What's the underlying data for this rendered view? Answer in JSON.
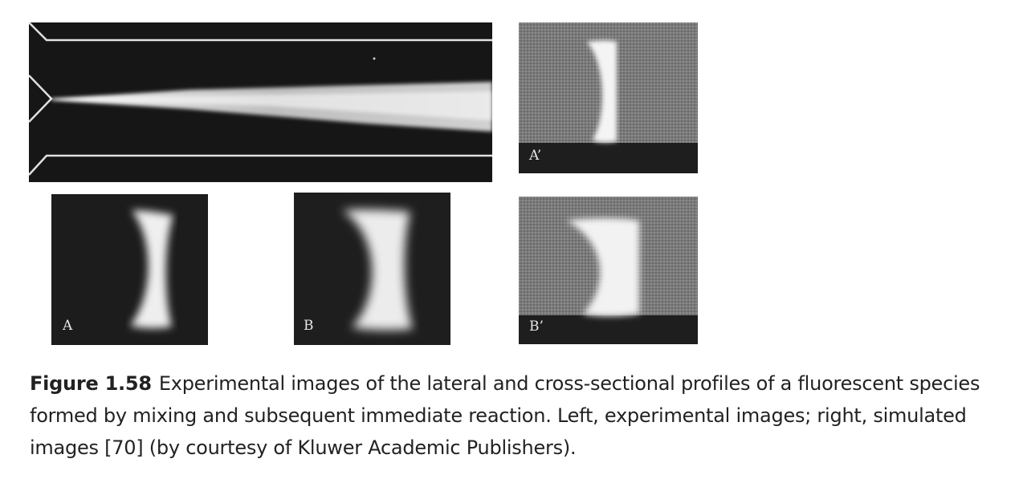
{
  "figure": {
    "label": "Figure 1.58",
    "caption_text": "Experimental images of the lateral and cross-sectional profiles of a fluorescent species formed by mixing and subsequent immediate reaction. Left, experimental images; right, simulated images [70] (by courtesy of Kluwer Academic Publishers)."
  },
  "panels": {
    "a_label": "A",
    "b_label": "B",
    "a_prime_label": "A’",
    "b_prime_label": "B’"
  },
  "colors": {
    "panel_dark": "#1c1c1c",
    "sim_gray": "#7a7a7a",
    "caption_text": "#222222"
  }
}
